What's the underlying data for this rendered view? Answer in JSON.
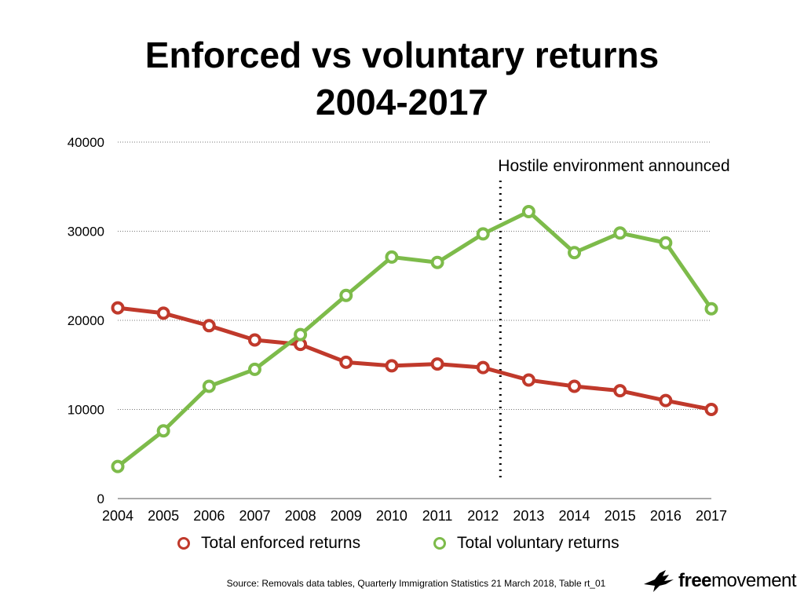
{
  "chart_data": {
    "type": "line",
    "title": "Enforced vs voluntary returns",
    "subtitle": "2004-2017",
    "x": [
      "2004",
      "2005",
      "2006",
      "2007",
      "2008",
      "2009",
      "2010",
      "2011",
      "2012",
      "2013",
      "2014",
      "2015",
      "2016",
      "2017"
    ],
    "series": [
      {
        "name": "Total enforced returns",
        "color": "#c0392b",
        "values": [
          21400,
          20800,
          19400,
          17800,
          17300,
          15300,
          14900,
          15100,
          14700,
          13300,
          12600,
          12100,
          11000,
          10000
        ]
      },
      {
        "name": "Total voluntary returns",
        "color": "#7dbb4a",
        "values": [
          3600,
          7600,
          12600,
          14500,
          18400,
          22800,
          27100,
          26500,
          29700,
          32200,
          27600,
          29800,
          28700,
          21300
        ]
      }
    ],
    "ylim": [
      0,
      40000
    ],
    "yticks": [
      0,
      10000,
      20000,
      30000,
      40000
    ],
    "ytick_labels": [
      "0",
      "10000",
      "20000",
      "30000",
      "40000"
    ],
    "grid": "horizontal dotted",
    "legend": "bottom",
    "annotation": {
      "text": "Hostile environment announced",
      "x_between": [
        "2012",
        "2013"
      ],
      "style": "vertical dotted line"
    }
  },
  "source": "Source: Removals data tables, Quarterly Immigration Statistics 21 March 2018, Table rt_01",
  "brand": {
    "name_part1": "free",
    "name_part2": "movement",
    "icon": "bird-icon"
  }
}
